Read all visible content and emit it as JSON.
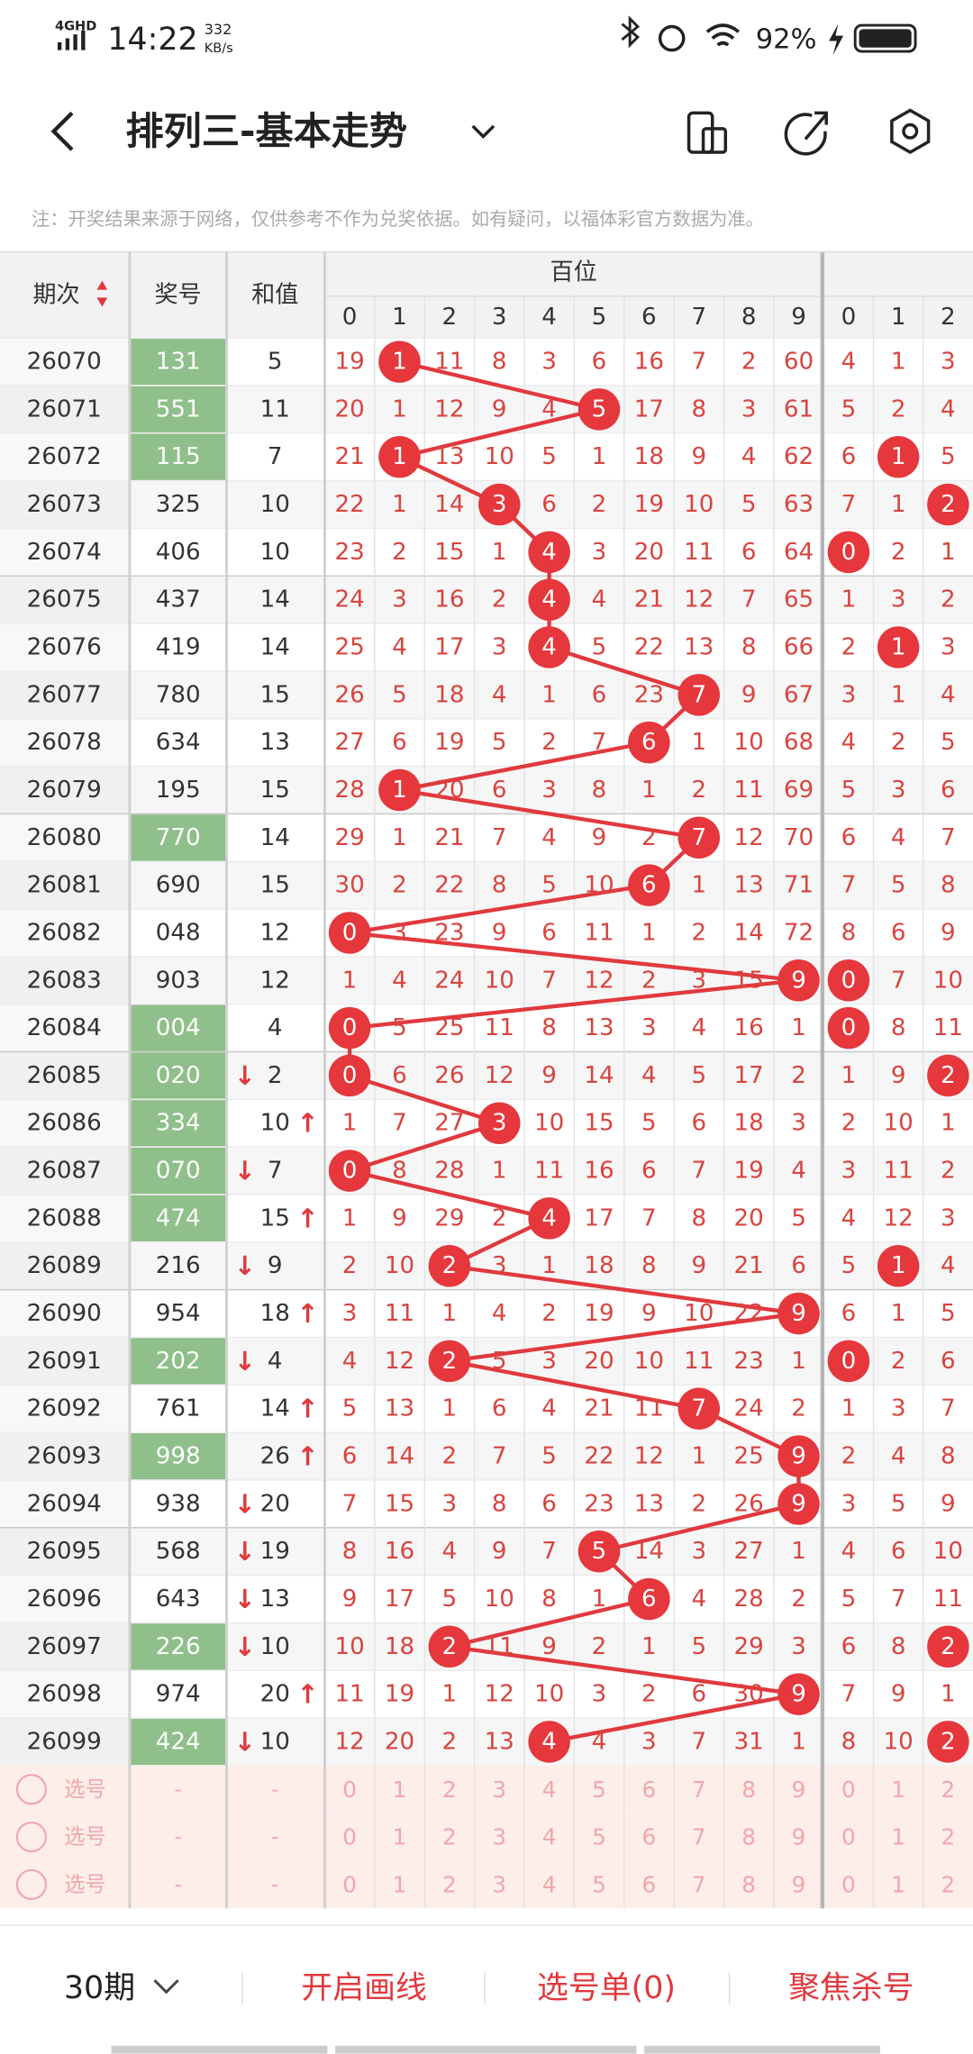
{
  "status_bar": {
    "network": "4GHD",
    "time": "14:22",
    "speed": "332",
    "speed_unit": "KB/s",
    "battery": "92%"
  },
  "header": {
    "title": "排列三-基本走势"
  },
  "note": "注：开奖结果来源于网络，仅供参考不作为兑奖依据。如有疑问，以福体彩官方数据为准。",
  "table": {
    "headers": {
      "period": "期次",
      "number": "奖号",
      "sum": "和值",
      "hundreds": "百位"
    },
    "digits": [
      0,
      1,
      2,
      3,
      4,
      5,
      6,
      7,
      8,
      9
    ],
    "tens_digits": [
      0,
      1,
      2
    ],
    "rows": [
      {
        "period": "26070",
        "number": "131",
        "sum": 5,
        "hundreds": [
          19,
          1,
          11,
          8,
          3,
          6,
          16,
          7,
          2,
          60
        ],
        "tens": [
          4,
          1,
          3
        ]
      },
      {
        "period": "26071",
        "number": "551",
        "sum": 11,
        "hundreds": [
          20,
          1,
          12,
          9,
          4,
          5,
          17,
          8,
          3,
          61
        ],
        "tens": [
          5,
          2,
          4
        ]
      },
      {
        "period": "26072",
        "number": "115",
        "sum": 7,
        "hundreds": [
          21,
          1,
          13,
          10,
          5,
          1,
          18,
          9,
          4,
          62
        ],
        "tens": [
          6,
          1,
          5
        ]
      },
      {
        "period": "26073",
        "number": "325",
        "sum": 10,
        "hundreds": [
          22,
          1,
          14,
          3,
          6,
          2,
          19,
          10,
          5,
          63
        ],
        "tens": [
          7,
          1,
          2
        ]
      },
      {
        "period": "26074",
        "number": "406",
        "sum": 10,
        "hundreds": [
          23,
          2,
          15,
          1,
          4,
          3,
          20,
          11,
          6,
          64
        ],
        "tens": [
          0,
          2,
          1
        ]
      },
      {
        "period": "26075",
        "number": "437",
        "sum": 14,
        "hundreds": [
          24,
          3,
          16,
          2,
          4,
          4,
          21,
          12,
          7,
          65
        ],
        "tens": [
          1,
          3,
          2
        ]
      },
      {
        "period": "26076",
        "number": "419",
        "sum": 14,
        "hundreds": [
          25,
          4,
          17,
          3,
          4,
          5,
          22,
          13,
          8,
          66
        ],
        "tens": [
          2,
          1,
          3
        ]
      },
      {
        "period": "26077",
        "number": "780",
        "sum": 15,
        "hundreds": [
          26,
          5,
          18,
          4,
          1,
          6,
          23,
          7,
          9,
          67
        ],
        "tens": [
          3,
          1,
          4
        ]
      },
      {
        "period": "26078",
        "number": "634",
        "sum": 13,
        "hundreds": [
          27,
          6,
          19,
          5,
          2,
          7,
          6,
          1,
          10,
          68
        ],
        "tens": [
          4,
          2,
          5
        ]
      },
      {
        "period": "26079",
        "number": "195",
        "sum": 15,
        "hundreds": [
          28,
          1,
          20,
          6,
          3,
          8,
          1,
          2,
          11,
          69
        ],
        "tens": [
          5,
          3,
          6
        ]
      },
      {
        "period": "26080",
        "number": "770",
        "sum": 14,
        "hundreds": [
          29,
          1,
          21,
          7,
          4,
          9,
          2,
          7,
          12,
          70
        ],
        "tens": [
          6,
          4,
          7
        ]
      },
      {
        "period": "26081",
        "number": "690",
        "sum": 15,
        "hundreds": [
          30,
          2,
          22,
          8,
          5,
          10,
          6,
          1,
          13,
          71
        ],
        "tens": [
          7,
          5,
          8
        ]
      },
      {
        "period": "26082",
        "number": "048",
        "sum": 12,
        "hundreds": [
          0,
          3,
          23,
          9,
          6,
          11,
          1,
          2,
          14,
          72
        ],
        "tens": [
          8,
          6,
          9
        ]
      },
      {
        "period": "26083",
        "number": "903",
        "sum": 12,
        "hundreds": [
          1,
          4,
          24,
          10,
          7,
          12,
          2,
          3,
          15,
          9
        ],
        "tens": [
          0,
          7,
          10
        ]
      },
      {
        "period": "26084",
        "number": "004",
        "sum": 4,
        "hundreds": [
          0,
          5,
          25,
          11,
          8,
          13,
          3,
          4,
          16,
          1
        ],
        "tens": [
          0,
          8,
          11
        ]
      },
      {
        "period": "26085",
        "number": "020",
        "sum": 2,
        "trend": "↓",
        "hundreds": [
          0,
          6,
          26,
          12,
          9,
          14,
          4,
          5,
          17,
          2
        ],
        "tens": [
          1,
          9,
          2
        ]
      },
      {
        "period": "26086",
        "number": "334",
        "sum": 10,
        "trend": "↑",
        "hundreds": [
          1,
          7,
          27,
          3,
          10,
          15,
          5,
          6,
          18,
          3
        ],
        "tens": [
          2,
          10,
          1
        ]
      },
      {
        "period": "26087",
        "number": "070",
        "sum": 7,
        "trend": "↓",
        "hundreds": [
          0,
          8,
          28,
          1,
          11,
          16,
          6,
          7,
          19,
          4
        ],
        "tens": [
          3,
          11,
          2
        ]
      },
      {
        "period": "26088",
        "number": "474",
        "sum": 15,
        "trend": "↑",
        "hundreds": [
          1,
          9,
          29,
          2,
          4,
          17,
          7,
          8,
          20,
          5
        ],
        "tens": [
          4,
          12,
          3
        ]
      },
      {
        "period": "26089",
        "number": "216",
        "sum": 9,
        "trend": "↓",
        "hundreds": [
          2,
          10,
          2,
          3,
          1,
          18,
          8,
          9,
          21,
          6
        ],
        "tens": [
          5,
          1,
          4
        ]
      },
      {
        "period": "26090",
        "number": "954",
        "sum": 18,
        "trend": "↑",
        "hundreds": [
          3,
          11,
          1,
          4,
          2,
          19,
          9,
          10,
          22,
          9
        ],
        "tens": [
          6,
          1,
          5
        ]
      },
      {
        "period": "26091",
        "number": "202",
        "sum": 4,
        "trend": "↓",
        "hundreds": [
          4,
          12,
          2,
          5,
          3,
          20,
          10,
          11,
          23,
          1
        ],
        "tens": [
          0,
          2,
          6
        ]
      },
      {
        "period": "26092",
        "number": "761",
        "sum": 14,
        "trend": "↑",
        "hundreds": [
          5,
          13,
          1,
          6,
          4,
          21,
          11,
          7,
          24,
          2
        ],
        "tens": [
          1,
          3,
          7
        ]
      },
      {
        "period": "26093",
        "number": "998",
        "sum": 26,
        "trend": "↑",
        "hundreds": [
          6,
          14,
          2,
          7,
          5,
          22,
          12,
          1,
          25,
          9
        ],
        "tens": [
          2,
          4,
          8
        ]
      },
      {
        "period": "26094",
        "number": "938",
        "sum": 20,
        "trend": "↓",
        "hundreds": [
          7,
          15,
          3,
          8,
          6,
          23,
          13,
          2,
          26,
          9
        ],
        "tens": [
          3,
          5,
          9
        ]
      },
      {
        "period": "26095",
        "number": "568",
        "sum": 19,
        "trend": "↓",
        "hundreds": [
          8,
          16,
          4,
          9,
          7,
          5,
          14,
          3,
          27,
          1
        ],
        "tens": [
          4,
          6,
          10
        ]
      },
      {
        "period": "26096",
        "number": "643",
        "sum": 13,
        "trend": "↓",
        "hundreds": [
          9,
          17,
          5,
          10,
          8,
          1,
          6,
          4,
          28,
          2
        ],
        "tens": [
          5,
          7,
          11
        ]
      },
      {
        "period": "26097",
        "number": "226",
        "sum": 10,
        "trend": "↓",
        "hundreds": [
          10,
          18,
          2,
          11,
          9,
          2,
          1,
          5,
          29,
          3
        ],
        "tens": [
          6,
          8,
          2
        ]
      },
      {
        "period": "26098",
        "number": "974",
        "sum": 20,
        "trend": "↑",
        "hundreds": [
          11,
          19,
          1,
          12,
          10,
          3,
          2,
          6,
          30,
          9
        ],
        "tens": [
          7,
          9,
          1
        ]
      },
      {
        "period": "26099",
        "number": "424",
        "sum": 10,
        "trend": "↓",
        "hundreds": [
          12,
          20,
          2,
          13,
          4,
          4,
          3,
          7,
          31,
          1
        ],
        "tens": [
          8,
          10,
          2
        ]
      }
    ],
    "pick_rows": [
      {
        "label": "选号",
        "number": "-",
        "sum": "-"
      },
      {
        "label": "选号",
        "number": "-",
        "sum": "-"
      },
      {
        "label": "选号",
        "number": "-",
        "sum": "-"
      }
    ]
  },
  "footer": {
    "periods": "30期",
    "draw": "开启画线",
    "list": "选号单(0)",
    "focus": "聚焦杀号"
  }
}
